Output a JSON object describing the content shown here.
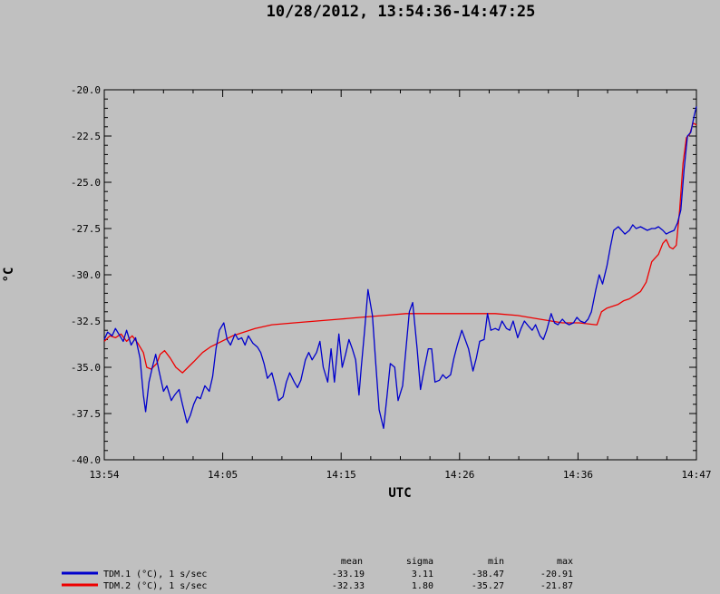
{
  "chart_data": {
    "type": "line",
    "title": "10/28/2012, 13:54:36-14:47:25",
    "xlabel": "UTC",
    "ylabel": "°C",
    "ylim": [
      -40.0,
      -20.0
    ],
    "yticks": [
      "-20.0",
      "-22.5",
      "-25.0",
      "-27.5",
      "-30.0",
      "-32.5",
      "-35.0",
      "-37.5",
      "-40.0"
    ],
    "xticks": [
      "13:54",
      "14:05",
      "14:15",
      "14:26",
      "14:36",
      "14:47"
    ],
    "xlim_minutes": [
      0,
      53
    ],
    "grid": false,
    "legend_position": "bottom-left",
    "stats_headers": [
      "mean",
      "sigma",
      "min",
      "max"
    ],
    "series": [
      {
        "name": "TDM.1 (°C), 1 s/sec",
        "color": "#0000cc",
        "stats": [
          "-33.19",
          "3.11",
          "-38.47",
          "-20.91"
        ],
        "x": [
          0,
          0.3,
          0.7,
          1.0,
          1.3,
          1.7,
          2.0,
          2.4,
          2.8,
          3.2,
          3.5,
          3.7,
          4.0,
          4.3,
          4.6,
          4.9,
          5.3,
          5.6,
          6.0,
          6.3,
          6.7,
          7.0,
          7.4,
          7.7,
          8.0,
          8.3,
          8.6,
          9.0,
          9.4,
          9.7,
          10.0,
          10.3,
          10.7,
          11.0,
          11.3,
          11.7,
          12.0,
          12.3,
          12.6,
          12.9,
          13.3,
          13.7,
          14.0,
          14.3,
          14.6,
          15.0,
          15.3,
          15.6,
          16.0,
          16.3,
          16.6,
          17.0,
          17.3,
          17.6,
          18.0,
          18.3,
          18.6,
          19.0,
          19.3,
          19.6,
          20.0,
          20.3,
          20.6,
          21.0,
          21.3,
          21.6,
          21.9,
          22.2,
          22.5,
          22.8,
          23.0,
          23.3,
          23.6,
          24.0,
          24.3,
          24.6,
          25.0,
          25.3,
          25.6,
          26.0,
          26.3,
          26.7,
          27.0,
          27.3,
          27.6,
          28.0,
          28.3,
          28.6,
          29.0,
          29.3,
          29.6,
          30.0,
          30.3,
          30.6,
          31.0,
          31.3,
          31.6,
          32.0,
          32.3,
          32.6,
          33.0,
          33.3,
          33.6,
          34.0,
          34.3,
          34.6,
          35.0,
          35.3,
          35.6,
          36.0,
          36.3,
          36.6,
          37.0,
          37.3,
          37.6,
          38.0,
          38.3,
          38.6,
          39.0,
          39.3,
          39.6,
          40.0,
          40.3,
          40.6,
          41.0,
          41.3,
          41.6,
          42.0,
          42.3,
          42.6,
          43.0,
          43.3,
          43.6,
          44.0,
          44.3,
          44.6,
          45.0,
          45.3,
          45.6,
          46.0,
          46.3,
          46.6,
          47.0,
          47.3,
          47.6,
          48.0,
          48.3,
          48.6,
          49.0,
          49.3,
          49.6,
          50.0,
          50.3,
          50.6,
          51.0,
          51.3,
          51.6,
          51.9,
          52.2,
          52.5,
          52.8,
          53.0
        ],
        "y": [
          -33.5,
          -33.1,
          -33.3,
          -32.9,
          -33.2,
          -33.6,
          -33.0,
          -33.8,
          -33.4,
          -34.5,
          -36.5,
          -37.4,
          -35.8,
          -35.0,
          -34.3,
          -35.2,
          -36.3,
          -36.0,
          -36.8,
          -36.5,
          -36.2,
          -37.0,
          -38.0,
          -37.6,
          -37.0,
          -36.6,
          -36.7,
          -36.0,
          -36.3,
          -35.5,
          -34.0,
          -33.0,
          -32.6,
          -33.5,
          -33.8,
          -33.2,
          -33.5,
          -33.4,
          -33.8,
          -33.3,
          -33.7,
          -33.9,
          -34.2,
          -34.8,
          -35.6,
          -35.3,
          -36.0,
          -36.8,
          -36.6,
          -35.8,
          -35.3,
          -35.8,
          -36.1,
          -35.7,
          -34.6,
          -34.2,
          -34.6,
          -34.2,
          -33.6,
          -35.0,
          -35.8,
          -34.0,
          -35.8,
          -33.2,
          -35.0,
          -34.3,
          -33.5,
          -34.0,
          -34.6,
          -36.5,
          -35.0,
          -33.0,
          -30.8,
          -32.2,
          -34.8,
          -37.3,
          -38.3,
          -36.6,
          -34.8,
          -35.0,
          -36.8,
          -36.0,
          -34.0,
          -32.0,
          -31.5,
          -34.0,
          -36.2,
          -35.2,
          -34.0,
          -34.0,
          -35.8,
          -35.7,
          -35.4,
          -35.6,
          -35.4,
          -34.5,
          -33.8,
          -33.0,
          -33.5,
          -34.0,
          -35.2,
          -34.5,
          -33.6,
          -33.5,
          -32.1,
          -33.0,
          -32.9,
          -33.0,
          -32.5,
          -32.9,
          -33.0,
          -32.5,
          -33.4,
          -32.9,
          -32.5,
          -32.8,
          -33.0,
          -32.7,
          -33.3,
          -33.5,
          -33.0,
          -32.1,
          -32.6,
          -32.7,
          -32.4,
          -32.6,
          -32.7,
          -32.6,
          -32.3,
          -32.5,
          -32.6,
          -32.4,
          -32.0,
          -30.8,
          -30.0,
          -30.5,
          -29.5,
          -28.5,
          -27.6,
          -27.4,
          -27.6,
          -27.8,
          -27.6,
          -27.3,
          -27.5,
          -27.4,
          -27.5,
          -27.6,
          -27.5,
          -27.5,
          -27.4,
          -27.6,
          -27.8,
          -27.7,
          -27.6,
          -27.2,
          -26.5,
          -24.3,
          -22.5,
          -22.3,
          -21.4,
          -20.9
        ]
      },
      {
        "name": "TDM.2 (°C), 1 s/sec",
        "color": "#ee0000",
        "stats": [
          "-32.33",
          "1.80",
          "-35.27",
          "-21.87"
        ],
        "x": [
          0,
          0.5,
          1.0,
          1.5,
          2.0,
          2.5,
          3.0,
          3.5,
          3.8,
          4.2,
          4.7,
          5.0,
          5.4,
          5.9,
          6.4,
          7.0,
          7.5,
          8.0,
          8.8,
          9.5,
          10.5,
          11.5,
          12.5,
          13.5,
          15.0,
          17.0,
          19.0,
          21.0,
          23.0,
          25.0,
          27.0,
          29.0,
          31.0,
          33.0,
          35.0,
          37.0,
          39.0,
          41.0,
          42.5,
          44.0,
          44.1,
          44.5,
          45.0,
          46.0,
          46.5,
          47.0,
          47.5,
          48.0,
          48.5,
          49.0,
          49.3,
          49.6,
          50.0,
          50.3,
          50.6,
          50.9,
          51.2,
          51.5,
          51.8,
          52.1,
          52.4,
          52.7,
          53.0
        ],
        "y": [
          -33.6,
          -33.3,
          -33.4,
          -33.2,
          -33.6,
          -33.3,
          -33.7,
          -34.2,
          -35.0,
          -35.1,
          -34.8,
          -34.3,
          -34.1,
          -34.5,
          -35.0,
          -35.3,
          -35.0,
          -34.7,
          -34.2,
          -33.9,
          -33.6,
          -33.3,
          -33.1,
          -32.9,
          -32.7,
          -32.6,
          -32.5,
          -32.4,
          -32.3,
          -32.2,
          -32.1,
          -32.1,
          -32.1,
          -32.1,
          -32.1,
          -32.2,
          -32.4,
          -32.6,
          -32.6,
          -32.7,
          -32.7,
          -32.0,
          -31.8,
          -31.6,
          -31.4,
          -31.3,
          -31.1,
          -30.9,
          -30.4,
          -29.3,
          -29.1,
          -28.9,
          -28.3,
          -28.1,
          -28.5,
          -28.6,
          -28.4,
          -26.5,
          -24.0,
          -22.6,
          -22.4,
          -21.8,
          -21.9
        ]
      }
    ]
  }
}
